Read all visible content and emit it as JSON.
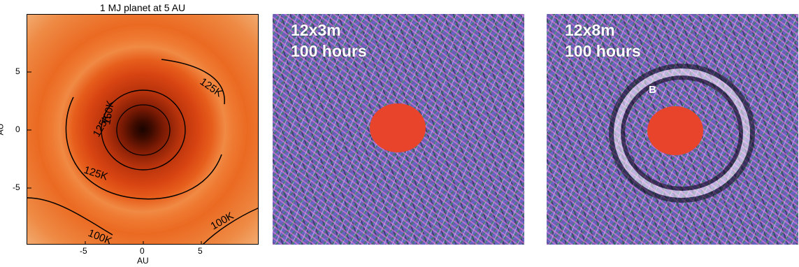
{
  "panel1": {
    "title": "1 MJ planet at 5 AU",
    "xlabel": "AU",
    "ylabel": "AU",
    "xticks": [
      "-5",
      "0",
      "5"
    ],
    "yticks": [
      "5",
      "0",
      "-5"
    ],
    "contour_labels": [
      "125K",
      "150K",
      "125K",
      "125K",
      "100K",
      "100K"
    ],
    "colors": {
      "core": "#1a0400",
      "disk": "#e75f1c",
      "outer": "#f3b27a",
      "contour": "#000000"
    }
  },
  "panel2": {
    "line1": "12x3m",
    "line2": "100 hours",
    "mask_color": "#e8432b"
  },
  "panel3": {
    "line1": "12x8m",
    "line2": "100 hours",
    "marker": "B",
    "mask_color": "#e8432b"
  }
}
